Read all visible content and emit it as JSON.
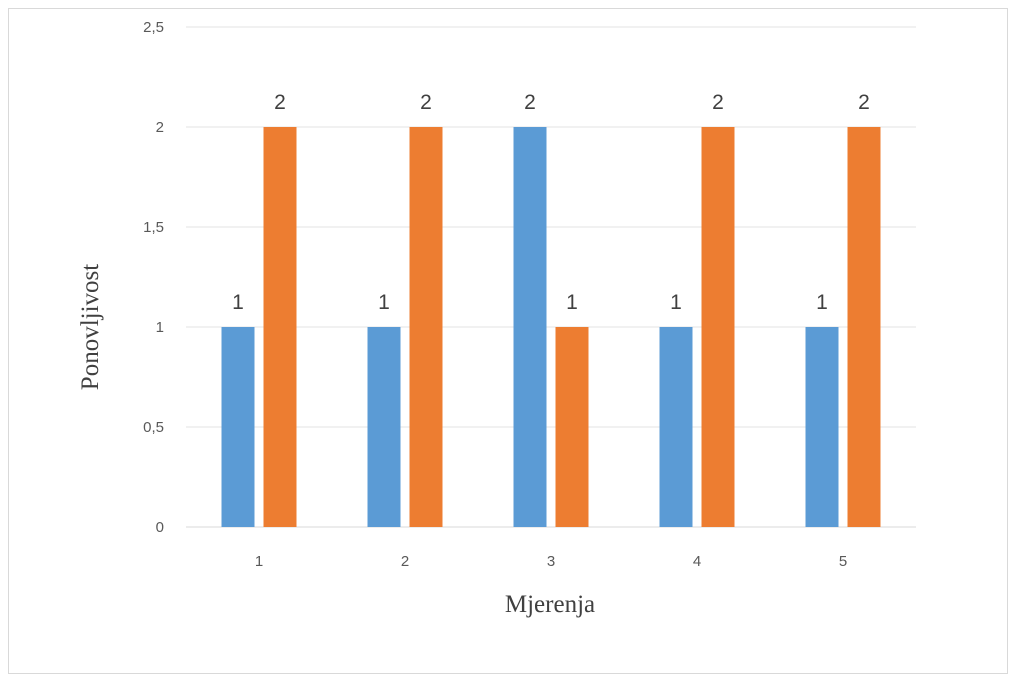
{
  "chart_data": {
    "type": "bar",
    "title": "",
    "xlabel": "Mjerenja",
    "ylabel": "Ponovljivost",
    "categories": [
      "1",
      "2",
      "3",
      "4",
      "5"
    ],
    "series": [
      {
        "values": [
          1,
          1,
          2,
          1,
          1
        ],
        "color": "#5b9bd5"
      },
      {
        "values": [
          2,
          2,
          1,
          2,
          2
        ],
        "color": "#ed7d31"
      }
    ],
    "ylim": [
      0,
      2.5
    ],
    "yticks": [
      0,
      0.5,
      1,
      1.5,
      2,
      2.5
    ],
    "ytick_labels": [
      "0",
      "0,5",
      "1",
      "1,5",
      "2",
      "2,5"
    ],
    "data_labels": true,
    "grid": true,
    "legend": "none"
  }
}
